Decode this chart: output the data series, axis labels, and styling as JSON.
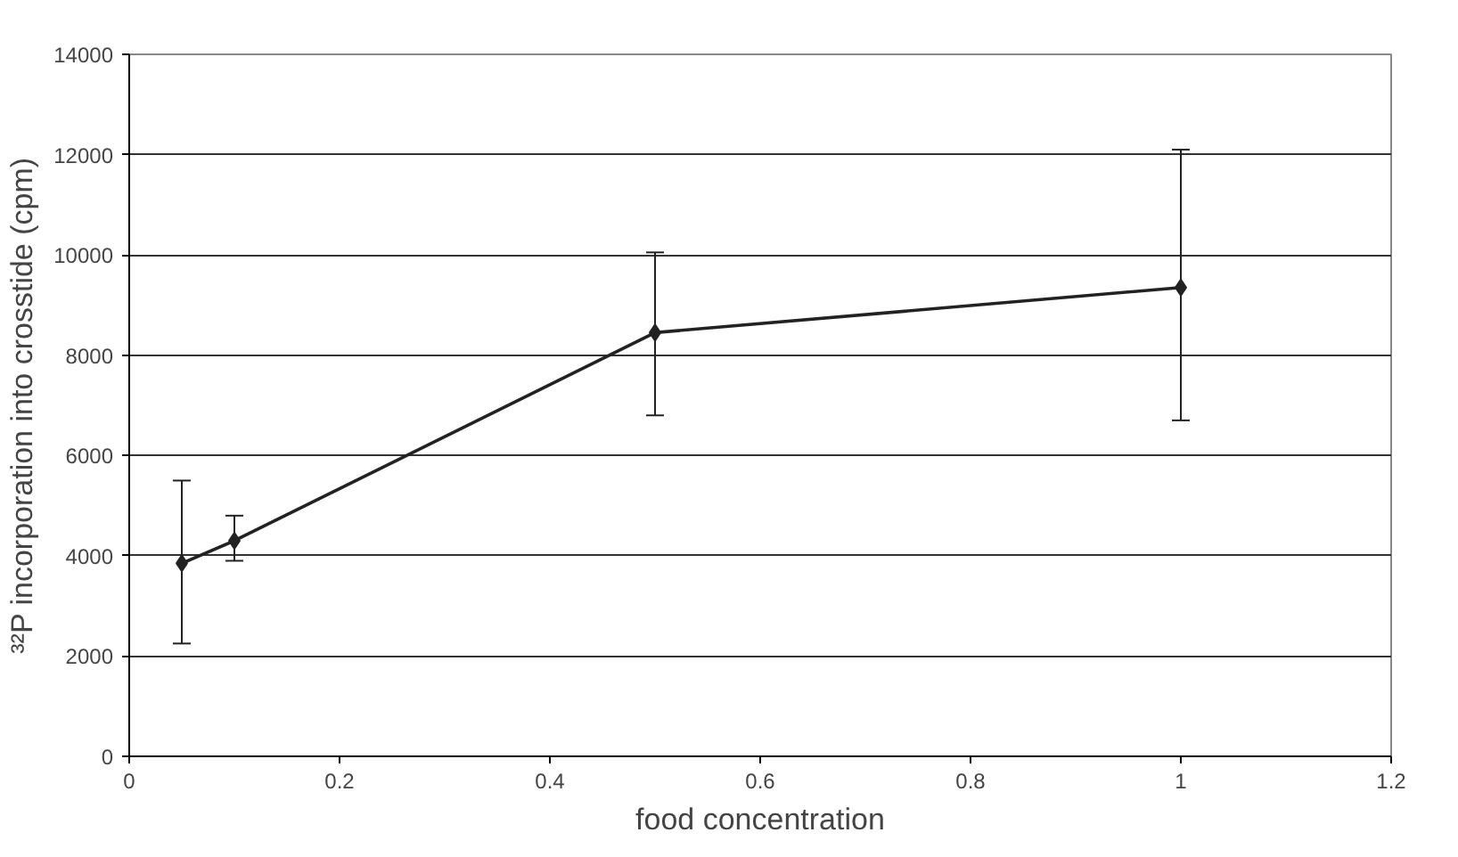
{
  "chart_data": {
    "type": "line",
    "xlabel": "food concentration",
    "ylabel": "³²P incorporation into crosstide (cpm)",
    "x": [
      0.05,
      0.1,
      0.5,
      1
    ],
    "series": [
      {
        "color": "#222222",
        "values": [
          3850,
          4300,
          8450,
          9350
        ],
        "errors": [
          [
            2250,
            5500
          ],
          [
            3900,
            4800
          ],
          [
            6800,
            10050
          ],
          [
            6700,
            12100
          ]
        ]
      }
    ],
    "xlim": [
      0,
      1.2
    ],
    "xticks": [
      0,
      0.2,
      0.4,
      0.6,
      0.8,
      1,
      1.2
    ],
    "ylim": [
      0,
      14000
    ],
    "yticks": [
      0,
      2000,
      4000,
      6000,
      8000,
      10000,
      12000,
      14000
    ],
    "grid": "y",
    "marker": "diamond",
    "line_style": "solid"
  }
}
